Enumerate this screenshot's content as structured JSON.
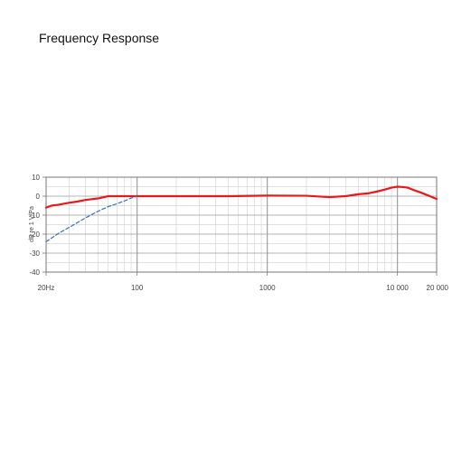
{
  "title": "Frequency Response",
  "chart_data": {
    "type": "line",
    "title": "Frequency Response",
    "xlabel": "",
    "ylabel": "dB re 1 V/Pa",
    "xscale": "log",
    "xlim": [
      20,
      20000
    ],
    "ylim": [
      -40,
      10
    ],
    "grid": true,
    "legend": "none",
    "x_tick_labels": [
      "20Hz",
      "100",
      "1000",
      "10 000",
      "20 000"
    ],
    "x_tick_values": [
      20,
      100,
      1000,
      10000,
      20000
    ],
    "y_tick_labels": [
      "10",
      "0",
      "-10",
      "-20",
      "-30",
      "-40"
    ],
    "y_tick_values": [
      10,
      0,
      -10,
      -20,
      -30,
      -40
    ],
    "colors": {
      "series_main": "#e8191b",
      "series_lowcut": "#3a6fb5",
      "grid_major": "#9a9a9a",
      "grid_minor": "#d6d6d6"
    },
    "series": [
      {
        "style": "solid",
        "color": "#e8191b",
        "x": [
          20,
          22,
          25,
          30,
          35,
          40,
          50,
          60,
          70,
          100,
          200,
          300,
          500,
          1000,
          2000,
          3000,
          4000,
          5000,
          6000,
          7000,
          8000,
          9000,
          10000,
          11000,
          12000,
          13000,
          15000,
          17000,
          20000
        ],
        "y": [
          -6,
          -5,
          -4.5,
          -3.5,
          -2.8,
          -2,
          -1.2,
          0,
          0,
          0,
          0,
          0,
          0,
          0.3,
          0.2,
          -0.5,
          0,
          1,
          1.5,
          2.5,
          3.5,
          4.5,
          5,
          4.8,
          4.5,
          3.5,
          2,
          0.5,
          -1.5
        ]
      },
      {
        "style": "dashed",
        "color": "#3a6fb5",
        "x": [
          20,
          25,
          30,
          40,
          50,
          60,
          70,
          80,
          90,
          100
        ],
        "y": [
          -24,
          -19.5,
          -16.5,
          -11.5,
          -8,
          -5.5,
          -4,
          -2.5,
          -1,
          0
        ]
      }
    ]
  }
}
